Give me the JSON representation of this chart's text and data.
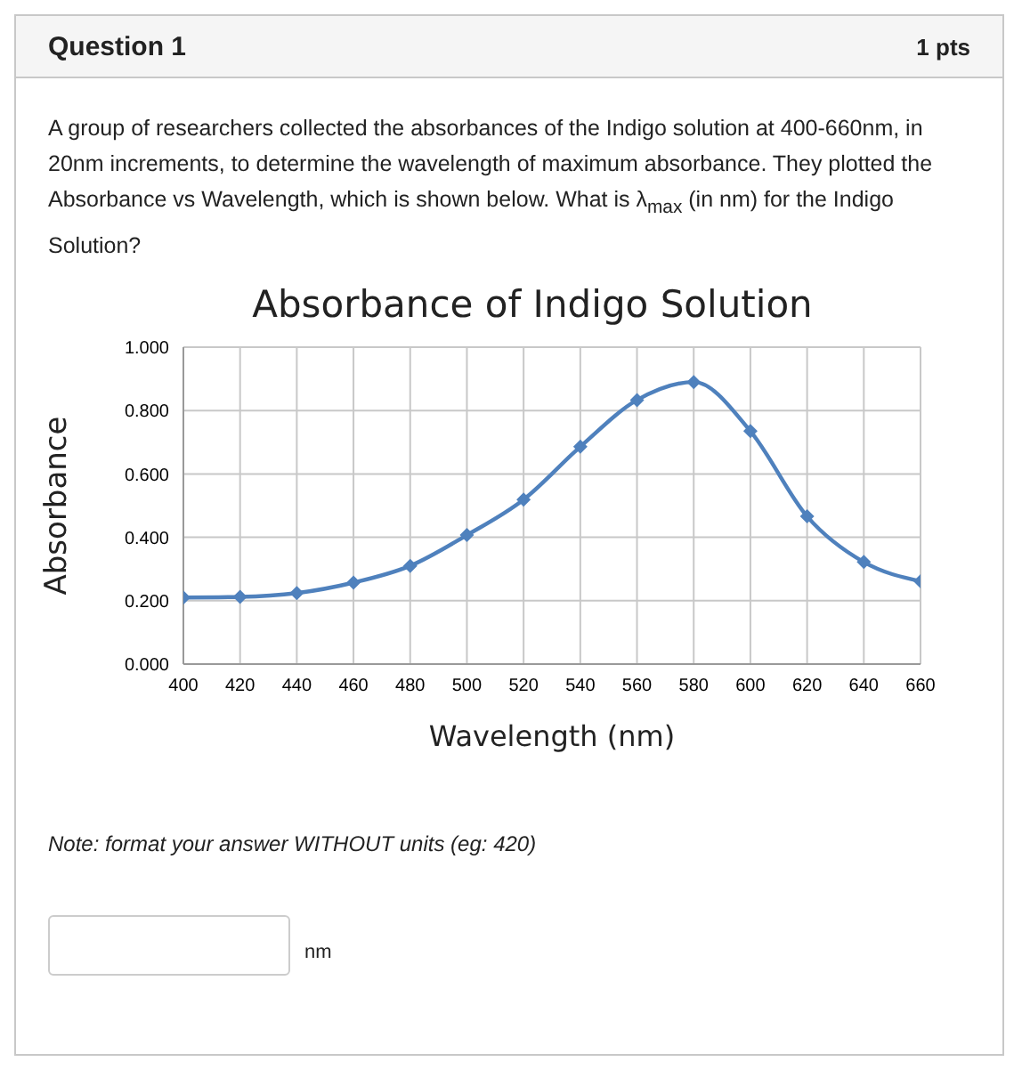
{
  "chart_data": {
    "type": "line",
    "title": "Absorbance of Indigo Solution",
    "xlabel": "Wavelength (nm)",
    "ylabel": "Absorbance",
    "annotations": [
      "Question 1",
      "1 pts",
      "A group of researchers collected the absorbances of the Indigo solution at 400-660nm, in 20nm increments, to determine the wavelength of maximum absorbance.  They plotted the Absorbance vs Wavelength, which is shown below.  What is λ$_{max}$ (in nm) for the Indigo Solution?",
      "Note: format your answer WITHOUT units (eg: 420)",
      "nm"
    ],
    "x": [
      400,
      420,
      440,
      460,
      480,
      500,
      520,
      540,
      560,
      580,
      600,
      620,
      640,
      660
    ],
    "series": [
      {
        "color": "#4f81bd",
        "values": [
          0.21,
          0.212,
          0.224,
          0.257,
          0.31,
          0.407,
          0.519,
          0.686,
          0.833,
          0.89,
          0.735,
          0.466,
          0.322,
          0.261
        ]
      }
    ],
    "xlim": [
      400,
      660
    ],
    "xticks": [
      400,
      420,
      440,
      460,
      480,
      500,
      520,
      540,
      560,
      580,
      600,
      620,
      640,
      660
    ],
    "ylim": [
      0,
      1
    ],
    "yticks": [
      {
        "value": 0,
        "label": "0.000"
      },
      {
        "value": 0.2,
        "label": "0.200"
      },
      {
        "value": 0.4,
        "label": "0.400"
      },
      {
        "value": 0.6,
        "label": "0.600"
      },
      {
        "value": 0.8,
        "label": "0.800"
      },
      {
        "value": 1,
        "label": "1.000"
      }
    ],
    "grid": true,
    "marker": "diamond",
    "line_style": "solid",
    "legend": false
  }
}
